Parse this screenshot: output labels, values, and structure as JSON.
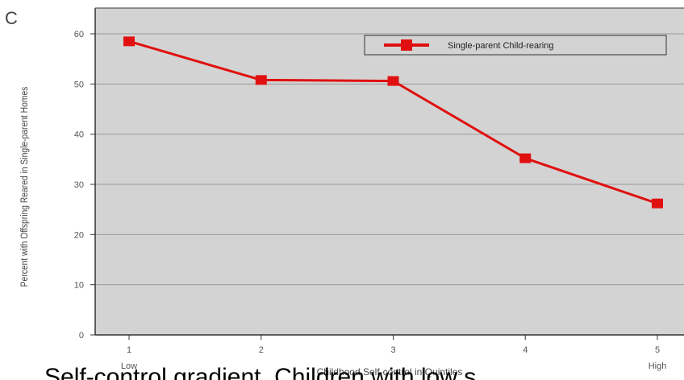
{
  "panel_label": "C",
  "caption": "Self-control gradient. Children with low s",
  "colors": {
    "plot_background": "#d3d3d3",
    "series": "#e01010",
    "grid": "#9a9a9a",
    "axis": "#333333"
  },
  "chart_data": {
    "type": "line",
    "title": "",
    "xlabel": "Childhood Self-control in Quintiles",
    "ylabel": "Percent with Offspring Reared in Single-parent Homes",
    "x": [
      1,
      2,
      3,
      4,
      5
    ],
    "x_tick_labels": [
      "1",
      "2",
      "3",
      "4",
      "5"
    ],
    "x_sub_labels": [
      "Low",
      "",
      "",
      "",
      "High"
    ],
    "xlim": [
      1,
      5
    ],
    "y_ticks": [
      0,
      10,
      20,
      30,
      40,
      50,
      60
    ],
    "ylim": [
      0,
      60
    ],
    "grid": true,
    "legend_position": "top-right",
    "series": [
      {
        "name": "Single-parent Child-rearing",
        "marker": "square",
        "values": [
          58.5,
          50.8,
          50.6,
          35.2,
          26.2
        ]
      }
    ]
  }
}
